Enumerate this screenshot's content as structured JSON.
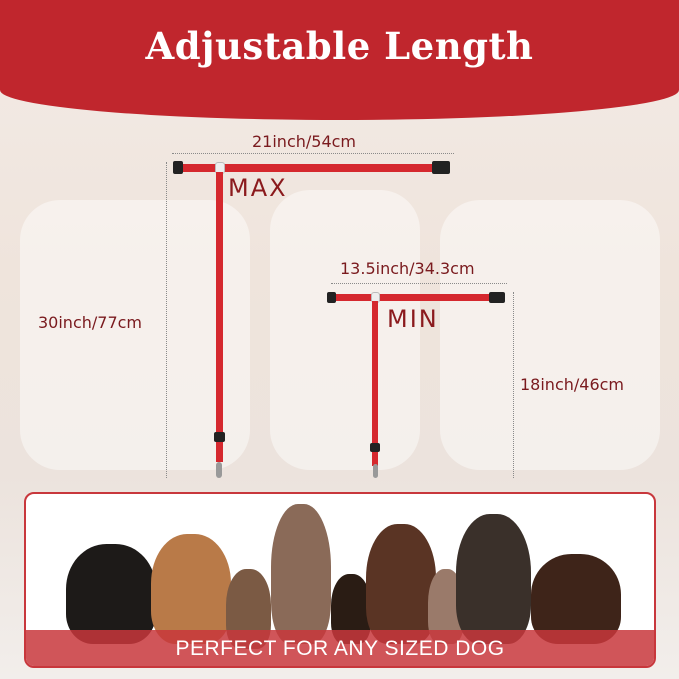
{
  "title": "Adjustable Length",
  "max": {
    "label": "MAX",
    "width": "21inch/54cm",
    "height": "30inch/77cm"
  },
  "min": {
    "label": "MIN",
    "width": "13.5inch/34.3cm",
    "height": "18inch/46cm"
  },
  "banner": {
    "text": "PERFECT FOR ANY SIZED DOG"
  },
  "colors": {
    "brand_red": "#c0262d",
    "strap_red": "#d5282e",
    "label_text": "#7a1a1e"
  }
}
